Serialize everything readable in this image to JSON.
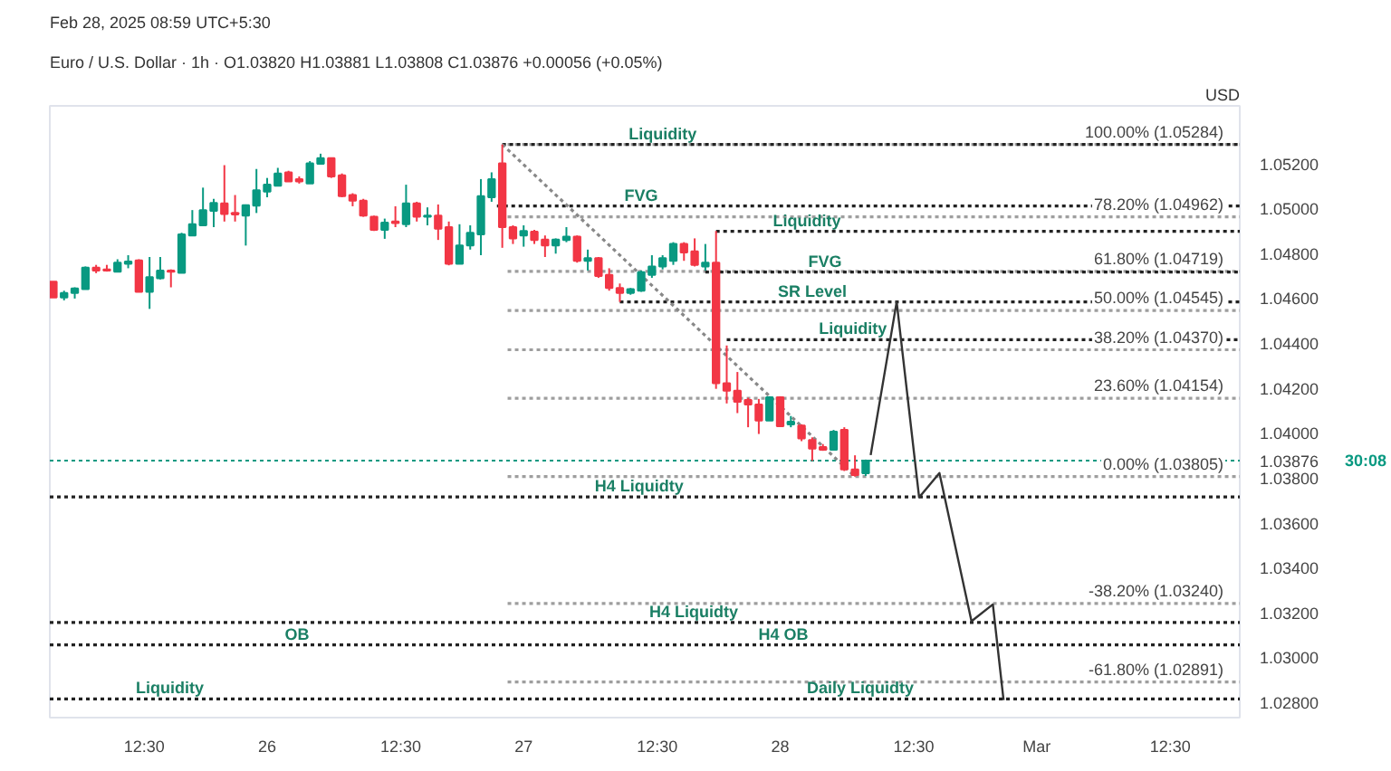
{
  "chart_data": {
    "type": "candlestick",
    "title": "Euro / U.S. Dollar · 1h · O1.03820 H1.03881 L1.03808 C1.03876 +0.00056 (+0.05%)",
    "subtitle": "Feb 28, 2025 08:59 UTC+5:30",
    "x": [
      "2025-02-25T04:00",
      "2025-02-25T05:00",
      "2025-02-25T06:00",
      "2025-02-25T07:00",
      "2025-02-25T08:00",
      "2025-02-25T09:00",
      "2025-02-25T10:00",
      "2025-02-25T11:00",
      "2025-02-25T12:00",
      "2025-02-25T13:00",
      "2025-02-25T14:00",
      "2025-02-25T15:00",
      "2025-02-25T16:00",
      "2025-02-25T17:00",
      "2025-02-25T18:00",
      "2025-02-25T19:00",
      "2025-02-25T20:00",
      "2025-02-25T21:00",
      "2025-02-25T22:00",
      "2025-02-25T23:00",
      "2025-02-26T00:00",
      "2025-02-26T01:00",
      "2025-02-26T02:00",
      "2025-02-26T03:00",
      "2025-02-26T04:00",
      "2025-02-26T05:00",
      "2025-02-26T06:00",
      "2025-02-26T07:00",
      "2025-02-26T08:00",
      "2025-02-26T09:00",
      "2025-02-26T10:00",
      "2025-02-26T11:00",
      "2025-02-26T12:00",
      "2025-02-26T13:00",
      "2025-02-26T14:00",
      "2025-02-26T15:00",
      "2025-02-26T16:00",
      "2025-02-26T17:00",
      "2025-02-26T18:00",
      "2025-02-26T19:00",
      "2025-02-26T20:00",
      "2025-02-26T21:00",
      "2025-02-26T22:00",
      "2025-02-26T23:00",
      "2025-02-27T00:00",
      "2025-02-27T01:00",
      "2025-02-27T02:00",
      "2025-02-27T03:00",
      "2025-02-27T04:00",
      "2025-02-27T05:00",
      "2025-02-27T06:00",
      "2025-02-27T07:00",
      "2025-02-27T08:00",
      "2025-02-27T09:00",
      "2025-02-27T10:00",
      "2025-02-27T11:00",
      "2025-02-27T12:00",
      "2025-02-27T13:00",
      "2025-02-27T14:00",
      "2025-02-27T15:00",
      "2025-02-27T16:00",
      "2025-02-27T17:00",
      "2025-02-27T18:00",
      "2025-02-27T19:00",
      "2025-02-27T20:00",
      "2025-02-27T21:00",
      "2025-02-27T22:00",
      "2025-02-27T23:00",
      "2025-02-28T00:00",
      "2025-02-28T01:00",
      "2025-02-28T02:00",
      "2025-02-28T03:00",
      "2025-02-28T04:00",
      "2025-02-28T05:00",
      "2025-02-28T06:00",
      "2025-02-28T07:00",
      "2025-02-28T08:00"
    ],
    "ohlc": [
      [
        1.04673,
        1.04673,
        1.04603,
        1.04603
      ],
      [
        1.04603,
        1.04633,
        1.0459,
        1.04623
      ],
      [
        1.04623,
        1.04648,
        1.04598,
        1.04643
      ],
      [
        1.0464,
        1.04741,
        1.0464,
        1.04736
      ],
      [
        1.04736,
        1.04748,
        1.04711,
        1.04723
      ],
      [
        1.04728,
        1.04748,
        1.04718,
        1.04723
      ],
      [
        1.04718,
        1.04773,
        1.04718,
        1.04758
      ],
      [
        1.04753,
        1.04791,
        1.04733,
        1.04763
      ],
      [
        1.04768,
        1.04773,
        1.04628,
        1.04628
      ],
      [
        1.04628,
        1.04783,
        1.04552,
        1.04693
      ],
      [
        1.04688,
        1.04783,
        1.04683,
        1.04723
      ],
      [
        1.04723,
        1.04728,
        1.04648,
        1.04718
      ],
      [
        1.04713,
        1.04891,
        1.04713,
        1.04884
      ],
      [
        1.04879,
        1.04992,
        1.04879,
        1.04929
      ],
      [
        1.04924,
        1.05092,
        1.04924,
        1.04992
      ],
      [
        1.04989,
        1.05042,
        1.04916,
        1.05024
      ],
      [
        1.05022,
        1.05192,
        1.04941,
        1.04974
      ],
      [
        1.04979,
        1.05059,
        1.04941,
        1.04972
      ],
      [
        1.04967,
        1.05017,
        1.04834,
        1.05014
      ],
      [
        1.05012,
        1.05175,
        1.04979,
        1.0508
      ],
      [
        1.05074,
        1.05135,
        1.05049,
        1.05105
      ],
      [
        1.051,
        1.0518,
        1.051,
        1.05155
      ],
      [
        1.0516,
        1.05167,
        1.0512,
        1.0512
      ],
      [
        1.0513,
        1.05142,
        1.0511,
        1.0512
      ],
      [
        1.0511,
        1.0521,
        1.0511,
        1.052
      ],
      [
        1.05198,
        1.05243,
        1.05198,
        1.05223
      ],
      [
        1.05223,
        1.05225,
        1.05135,
        1.05142
      ],
      [
        1.05147,
        1.05155,
        1.05049,
        1.05054
      ],
      [
        1.05059,
        1.05067,
        1.05009,
        1.05034
      ],
      [
        1.05034,
        1.05042,
        1.04962,
        1.04967
      ],
      [
        1.04962,
        1.04967,
        1.04899,
        1.04904
      ],
      [
        1.04904,
        1.04954,
        1.04864,
        1.04936
      ],
      [
        1.04941,
        1.05009,
        1.04916,
        1.04934
      ],
      [
        1.04929,
        1.05105,
        1.04916,
        1.05022
      ],
      [
        1.05022,
        1.05029,
        1.04941,
        1.04962
      ],
      [
        1.04962,
        1.05004,
        1.04924,
        1.04967
      ],
      [
        1.04967,
        1.05017,
        1.04859,
        1.04909
      ],
      [
        1.04916,
        1.04941,
        1.04746,
        1.04753
      ],
      [
        1.04753,
        1.04929,
        1.04753,
        1.04834
      ],
      [
        1.04834,
        1.04924,
        1.04816,
        1.04891
      ],
      [
        1.04884,
        1.0513,
        1.04791,
        1.05054
      ],
      [
        1.05049,
        1.0516,
        1.05029,
        1.0513
      ],
      [
        1.052,
        1.05284,
        1.04824,
        1.04916
      ],
      [
        1.04916,
        1.04924,
        1.04841,
        1.04866
      ],
      [
        1.04879,
        1.04924,
        1.04829,
        1.04899
      ],
      [
        1.04896,
        1.04904,
        1.04841,
        1.04859
      ],
      [
        1.04861,
        1.04879,
        1.04783,
        1.04834
      ],
      [
        1.04834,
        1.04866,
        1.04798,
        1.04861
      ],
      [
        1.04859,
        1.04916,
        1.04849,
        1.04874
      ],
      [
        1.04874,
        1.04879,
        1.04758,
        1.04766
      ],
      [
        1.04766,
        1.04816,
        1.04723,
        1.04778
      ],
      [
        1.04778,
        1.04783,
        1.0469,
        1.04698
      ],
      [
        1.04703,
        1.04733,
        1.04633,
        1.04645
      ],
      [
        1.04645,
        1.04665,
        1.04583,
        1.04623
      ],
      [
        1.04623,
        1.04645,
        1.04615,
        1.0464
      ],
      [
        1.04633,
        1.04723,
        1.04628,
        1.04716
      ],
      [
        1.04703,
        1.04791,
        1.0469,
        1.04741
      ],
      [
        1.04741,
        1.04791,
        1.04728,
        1.04778
      ],
      [
        1.04766,
        1.04849,
        1.04748,
        1.04841
      ],
      [
        1.04841,
        1.04849,
        1.04766,
        1.04803
      ],
      [
        1.04808,
        1.04866,
        1.04741,
        1.04748
      ],
      [
        1.04741,
        1.04841,
        1.04723,
        1.04758
      ],
      [
        1.04758,
        1.04899,
        1.04196,
        1.04221
      ],
      [
        1.04221,
        1.04389,
        1.04131,
        1.04188
      ],
      [
        1.04188,
        1.04271,
        1.04088,
        1.04138
      ],
      [
        1.04146,
        1.04156,
        1.04025,
        1.04126
      ],
      [
        1.04126,
        1.04151,
        1.03995,
        1.04055
      ],
      [
        1.04055,
        1.04163,
        1.04055,
        1.04158
      ],
      [
        1.04158,
        1.04163,
        1.0403,
        1.0403
      ],
      [
        1.04038,
        1.04075,
        1.04025,
        1.0405
      ],
      [
        1.04033,
        1.04038,
        1.03963,
        1.03975
      ],
      [
        1.03968,
        1.0398,
        1.03875,
        1.0393
      ],
      [
        1.03937,
        1.0395,
        1.0392,
        1.03925
      ],
      [
        1.03925,
        1.04013,
        1.03925,
        1.04005
      ],
      [
        1.04013,
        1.04025,
        1.0383,
        1.03837
      ],
      [
        1.03837,
        1.039,
        1.03805,
        1.03812
      ],
      [
        1.0382,
        1.03881,
        1.03808,
        1.03876
      ]
    ],
    "colors": [
      "#f23645",
      "#089981",
      "#089981",
      "#089981",
      "#f23645",
      "#f23645",
      "#089981",
      "#089981",
      "#f23645",
      "#089981",
      "#089981",
      "#f23645",
      "#089981",
      "#089981",
      "#089981",
      "#089981",
      "#f23645",
      "#f23645",
      "#089981",
      "#089981",
      "#089981",
      "#089981",
      "#f23645",
      "#f23645",
      "#089981",
      "#089981",
      "#f23645",
      "#f23645",
      "#f23645",
      "#f23645",
      "#f23645",
      "#089981",
      "#f23645",
      "#089981",
      "#f23645",
      "#089981",
      "#f23645",
      "#f23645",
      "#089981",
      "#089981",
      "#089981",
      "#089981",
      "#f23645",
      "#f23645",
      "#089981",
      "#f23645",
      "#f23645",
      "#089981",
      "#089981",
      "#f23645",
      "#089981",
      "#f23645",
      "#f23645",
      "#f23645",
      "#089981",
      "#089981",
      "#089981",
      "#089981",
      "#089981",
      "#f23645",
      "#f23645",
      "#089981",
      "#f23645",
      "#f23645",
      "#f23645",
      "#f23645",
      "#f23645",
      "#089981",
      "#f23645",
      "#089981",
      "#f23645",
      "#f23645",
      "#f23645",
      "#089981",
      "#f23645",
      "#f23645",
      "#089981"
    ],
    "series": [
      {
        "type": "line",
        "name": "100.00% (1.05284)",
        "x": [
          "2025-02-26T22:30",
          "2025-03-01T19:00"
        ],
        "values": [
          1.05284,
          1.05284
        ],
        "color": "#9e9e9e",
        "line_style": "dotted"
      },
      {
        "type": "line",
        "name": "78.20% (1.04962)",
        "x": [
          "2025-02-26T22:30",
          "2025-03-01T19:00"
        ],
        "values": [
          1.04962,
          1.04962
        ],
        "color": "#9e9e9e",
        "line_style": "dotted"
      },
      {
        "type": "line",
        "name": "61.80% (1.04719)",
        "x": [
          "2025-02-26T22:30",
          "2025-03-01T19:00"
        ],
        "values": [
          1.04719,
          1.04719
        ],
        "color": "#9e9e9e",
        "line_style": "dotted"
      },
      {
        "type": "line",
        "name": "50.00% (1.04545)",
        "x": [
          "2025-02-26T22:30",
          "2025-03-01T19:00"
        ],
        "values": [
          1.04545,
          1.04545
        ],
        "color": "#9e9e9e",
        "line_style": "dotted"
      },
      {
        "type": "line",
        "name": "38.20% (1.04370)",
        "x": [
          "2025-02-26T22:30",
          "2025-03-01T19:00"
        ],
        "values": [
          1.0437,
          1.0437
        ],
        "color": "#9e9e9e",
        "line_style": "dotted"
      },
      {
        "type": "line",
        "name": "23.60% (1.04154)",
        "x": [
          "2025-02-26T22:30",
          "2025-03-01T19:00"
        ],
        "values": [
          1.04154,
          1.04154
        ],
        "color": "#9e9e9e",
        "line_style": "dotted"
      },
      {
        "type": "line",
        "name": "0.00% (1.03805)",
        "x": [
          "2025-02-26T22:30",
          "2025-03-01T19:00"
        ],
        "values": [
          1.03805,
          1.03805
        ],
        "color": "#9e9e9e",
        "line_style": "dotted"
      },
      {
        "type": "line",
        "name": "-38.20% (1.03240)",
        "x": [
          "2025-02-26T22:30",
          "2025-03-01T19:00"
        ],
        "values": [
          1.0324,
          1.0324
        ],
        "color": "#9e9e9e",
        "line_style": "dotted"
      },
      {
        "type": "line",
        "name": "-61.80% (1.02891)",
        "x": [
          "2025-02-26T22:30",
          "2025-03-01T19:00"
        ],
        "values": [
          1.02891,
          1.02891
        ],
        "color": "#9e9e9e",
        "line_style": "dotted"
      },
      {
        "type": "line",
        "x": [
          "2025-02-26T22:00",
          "2025-03-01T19:00"
        ],
        "values": [
          1.05284,
          1.05284
        ],
        "color": "#222222",
        "line_style": "dotted"
      },
      {
        "type": "line",
        "x": [
          "2025-02-26T21:30",
          "2025-03-01T19:00"
        ],
        "values": [
          1.0501,
          1.0501
        ],
        "color": "#222222",
        "line_style": "dotted"
      },
      {
        "type": "line",
        "x": [
          "2025-02-27T18:00",
          "2025-03-01T19:00"
        ],
        "values": [
          1.04897,
          1.04897
        ],
        "color": "#222222",
        "line_style": "dotted"
      },
      {
        "type": "line",
        "x": [
          "2025-02-27T17:00",
          "2025-03-01T19:00"
        ],
        "values": [
          1.04716,
          1.04716
        ],
        "color": "#222222",
        "line_style": "dotted"
      },
      {
        "type": "line",
        "x": [
          "2025-02-27T09:00",
          "2025-03-01T19:00"
        ],
        "values": [
          1.04583,
          1.04583
        ],
        "color": "#222222",
        "line_style": "dotted"
      },
      {
        "type": "line",
        "x": [
          "2025-02-27T19:00",
          "2025-03-01T19:00"
        ],
        "values": [
          1.04415,
          1.04415
        ],
        "color": "#222222",
        "line_style": "dotted"
      },
      {
        "type": "line",
        "x": [
          "2025-02-25T03:40",
          "2025-03-01T19:00"
        ],
        "values": [
          1.03715,
          1.03715
        ],
        "color": "#222222",
        "line_style": "dotted"
      },
      {
        "type": "line",
        "x": [
          "2025-02-25T03:40",
          "2025-03-01T19:00"
        ],
        "values": [
          1.03156,
          1.03156
        ],
        "color": "#222222",
        "line_style": "dotted"
      },
      {
        "type": "line",
        "x": [
          "2025-02-25T03:40",
          "2025-03-01T19:00"
        ],
        "values": [
          1.03056,
          1.03056
        ],
        "color": "#222222",
        "line_style": "dotted"
      },
      {
        "type": "line",
        "x": [
          "2025-02-25T03:40",
          "2025-03-01T19:00"
        ],
        "values": [
          1.02815,
          1.02815
        ],
        "color": "#222222",
        "line_style": "dotted"
      },
      {
        "type": "line",
        "x": [
          "2025-02-26T22:00",
          "2025-02-28T07:00"
        ],
        "values": [
          1.05284,
          1.03805
        ],
        "color": "#888888",
        "line_style": "dotted"
      },
      {
        "type": "line",
        "x": [
          "2025-02-28T08:28",
          "2025-02-28T10:54",
          "2025-02-28T13:00",
          "2025-02-28T14:54",
          "2025-02-28T17:54",
          "2025-02-28T19:54",
          "2025-02-28T20:54"
        ],
        "values": [
          1.03901,
          1.04583,
          1.03713,
          1.03821,
          1.03161,
          1.03236,
          1.0281
        ],
        "color": "#333333",
        "line_style": "solid"
      }
    ],
    "ref_lines": [
      {
        "axis": "y",
        "value": 1.03876,
        "label": "1.03876",
        "color": "#089981",
        "line_style": "dotted"
      }
    ],
    "annotations": [
      "USD",
      "30:08",
      {
        "text": "Liquidity",
        "x": "2025-02-27T13:00",
        "y": 1.05284
      },
      {
        "text": "FVG",
        "x": "2025-02-27T11:00",
        "y": 1.0501
      },
      {
        "text": "Liquidity",
        "x": "2025-02-28T02:30",
        "y": 1.04897
      },
      {
        "text": "FVG",
        "x": "2025-02-28T04:12",
        "y": 1.04716
      },
      {
        "text": "SR Level",
        "x": "2025-02-28T03:00",
        "y": 1.04583
      },
      {
        "text": "Liquidity",
        "x": "2025-02-28T06:48",
        "y": 1.04415
      },
      {
        "text": "H4 Liquidty",
        "x": "2025-02-27T10:48",
        "y": 1.03715
      },
      {
        "text": "H4 Liquidty",
        "x": "2025-02-27T15:54",
        "y": 1.03156
      },
      {
        "text": "OB",
        "x": "2025-02-26T02:48",
        "y": 1.03056
      },
      {
        "text": "H4 OB",
        "x": "2025-02-28T00:18",
        "y": 1.03056
      },
      {
        "text": "Liquidity",
        "x": "2025-02-25T14:54",
        "y": 1.02815
      },
      {
        "text": "Daily Liquidty",
        "x": "2025-02-28T07:30",
        "y": 1.02815
      }
    ],
    "xlim": [
      "2025-02-25T03:40",
      "2025-03-01T19:00"
    ],
    "ylim": [
      1.02732,
      1.05456
    ],
    "xticks": [
      {
        "value": "2025-02-25T12:30",
        "label": "12:30"
      },
      {
        "value": "2025-02-26",
        "label": "26"
      },
      {
        "value": "2025-02-26T12:30",
        "label": "12:30"
      },
      {
        "value": "2025-02-27",
        "label": "27"
      },
      {
        "value": "2025-02-27T12:30",
        "label": "12:30"
      },
      {
        "value": "2025-02-28",
        "label": "28"
      },
      {
        "value": "2025-02-28T12:30",
        "label": "12:30"
      },
      {
        "value": "2025-03-01",
        "label": "Mar"
      },
      {
        "value": "2025-03-01T12:30",
        "label": "12:30"
      }
    ],
    "yticks": [
      {
        "value": 1.028,
        "label": "1.02800"
      },
      {
        "value": 1.03,
        "label": "1.03000"
      },
      {
        "value": 1.032,
        "label": "1.03200"
      },
      {
        "value": 1.034,
        "label": "1.03400"
      },
      {
        "value": 1.036,
        "label": "1.03600"
      },
      {
        "value": 1.038,
        "label": "1.03800"
      },
      {
        "value": 1.04,
        "label": "1.04000"
      },
      {
        "value": 1.042,
        "label": "1.04200"
      },
      {
        "value": 1.044,
        "label": "1.04400"
      },
      {
        "value": 1.046,
        "label": "1.04600"
      },
      {
        "value": 1.048,
        "label": "1.04800"
      },
      {
        "value": 1.05,
        "label": "1.05000"
      },
      {
        "value": 1.052,
        "label": "1.05200"
      }
    ],
    "grid": false
  }
}
